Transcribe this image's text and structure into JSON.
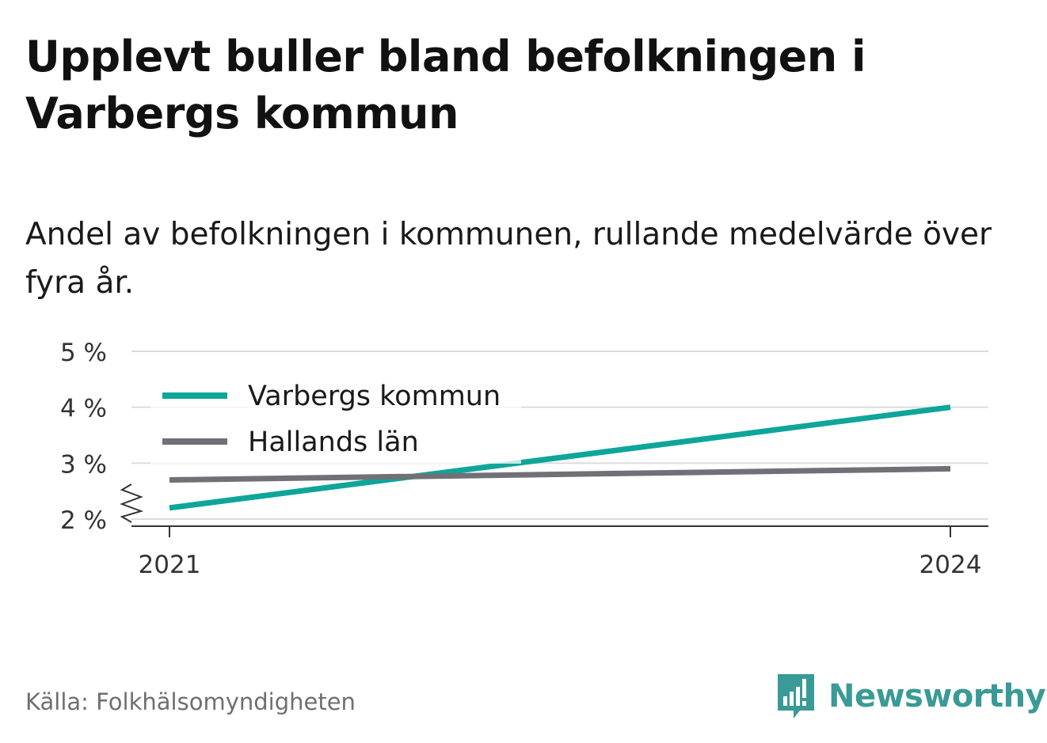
{
  "title": "Upplevt buller bland befolkningen i Varbergs kommun",
  "subtitle": "Andel av befolkningen i kommunen, rullande medelvärde över fyra år.",
  "source": "Källa: Folkhälsomyndigheten",
  "brand": {
    "name": "Newsworthy",
    "icon": "newsworthy-logo-icon",
    "color": "#3a9a96"
  },
  "chart_data": {
    "type": "line",
    "x": [
      "2021",
      "2024"
    ],
    "series": [
      {
        "name": "Varbergs kommun",
        "color": "#0ea59a",
        "values": [
          2.2,
          4.0
        ]
      },
      {
        "name": "Hallands län",
        "color": "#707076",
        "values": [
          2.7,
          2.9
        ]
      }
    ],
    "y_ticks": [
      2,
      3,
      4,
      5
    ],
    "y_tick_labels": [
      "2 %",
      "3 %",
      "4 %",
      "5 %"
    ],
    "ylim": [
      2,
      5
    ],
    "y_axis_break": true,
    "grid": true,
    "legend_position": "top-left"
  }
}
